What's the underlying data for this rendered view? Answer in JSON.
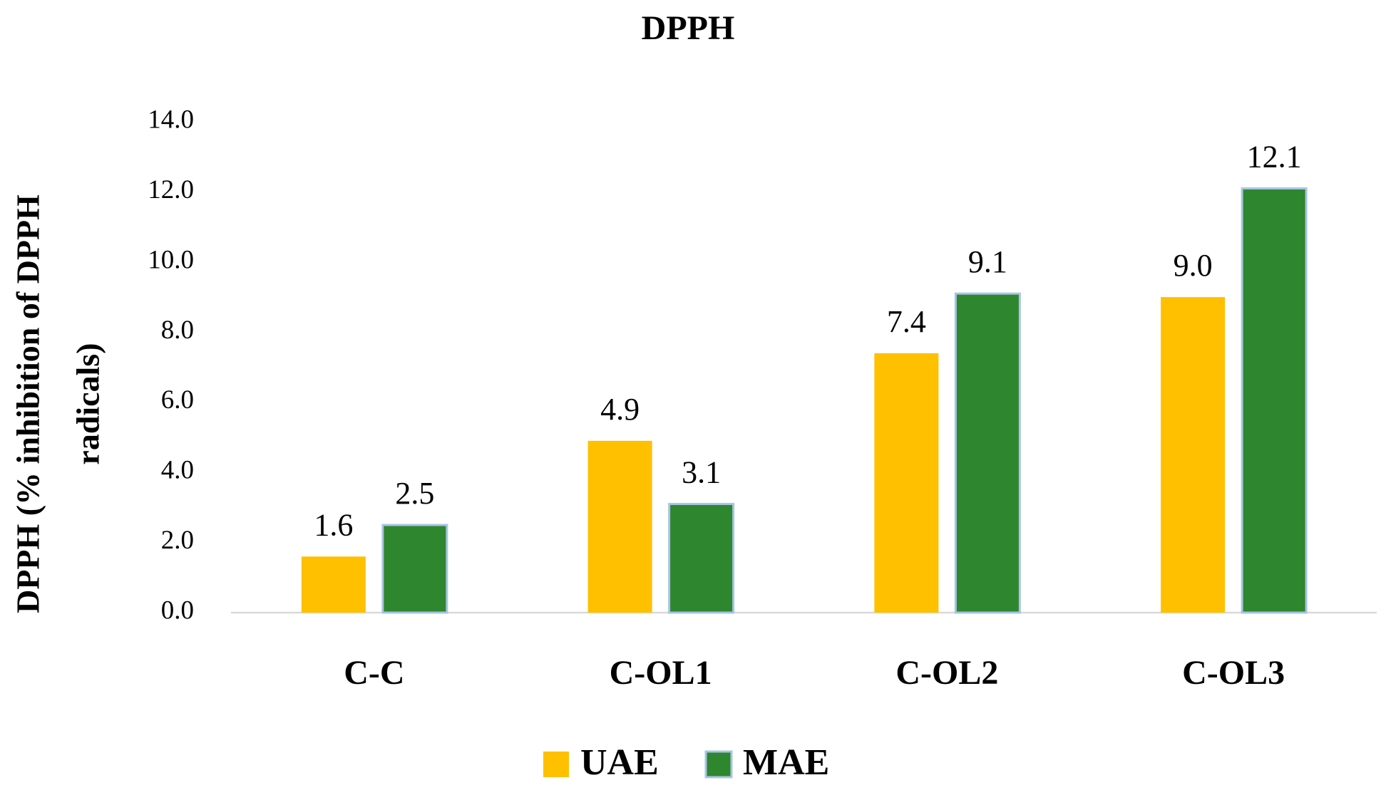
{
  "chart_data": {
    "type": "bar",
    "title": "DPPH",
    "y_label": [
      "DPPH (% inhibition of DPPH",
      "radicals)"
    ],
    "categories": [
      "C-C",
      "C-OL1",
      "C-OL2",
      "C-OL3"
    ],
    "series": [
      {
        "name": "UAE",
        "color": "#ffc000",
        "values": [
          1.6,
          4.9,
          7.4,
          9.0
        ],
        "value_labels": [
          "1.6",
          "4.9",
          "7.4",
          "9.0"
        ]
      },
      {
        "name": "MAE",
        "color": "#2e862e",
        "values": [
          2.5,
          3.1,
          9.1,
          12.1
        ],
        "value_labels": [
          "2.5",
          "3.1",
          "9.1",
          "12.1"
        ]
      }
    ],
    "ylim": [
      0,
      14
    ],
    "yticks": [
      {
        "value": 0,
        "label": "0.0"
      },
      {
        "value": 2,
        "label": "2.0"
      },
      {
        "value": 4,
        "label": "4.0"
      },
      {
        "value": 6,
        "label": "6.0"
      },
      {
        "value": 8,
        "label": "8.0"
      },
      {
        "value": 10,
        "label": "10.0"
      },
      {
        "value": 12,
        "label": "12.0"
      },
      {
        "value": 14,
        "label": "14.0"
      }
    ],
    "grid": false,
    "legend": "bottom"
  }
}
